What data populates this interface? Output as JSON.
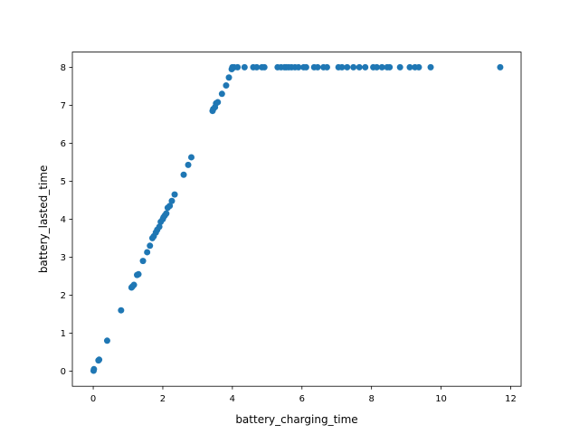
{
  "chart_data": {
    "type": "scatter",
    "title": "",
    "xlabel": "battery_charging_time",
    "ylabel": "battery_lasted_time",
    "xlim": [
      -0.6,
      12.3
    ],
    "ylim": [
      -0.4,
      8.4
    ],
    "xticks": [
      0,
      2,
      4,
      6,
      8,
      10,
      12
    ],
    "yticks": [
      0,
      1,
      2,
      3,
      4,
      5,
      6,
      7,
      8
    ],
    "grid": false,
    "marker_color": "#1f77b4",
    "series": [
      {
        "x": [
          0.01,
          0.02,
          0.15,
          0.17,
          0.4,
          0.8,
          1.1,
          1.13,
          1.17,
          1.26,
          1.3,
          1.43,
          1.55,
          1.63,
          1.7,
          1.74,
          1.8,
          1.84,
          1.9,
          1.94,
          2.0,
          2.02,
          2.06,
          2.1,
          2.14,
          2.2,
          2.26,
          2.34,
          2.6,
          2.73,
          2.82,
          3.43,
          3.45,
          3.5,
          3.53,
          3.58,
          3.7,
          3.82,
          3.9,
          3.98,
          4.0,
          4.05,
          4.15,
          4.35,
          4.6,
          4.7,
          4.85,
          4.92,
          5.3,
          5.4,
          5.5,
          5.55,
          5.62,
          5.7,
          5.8,
          5.9,
          6.05,
          6.12,
          6.35,
          6.45,
          6.62,
          6.72,
          7.05,
          7.15,
          7.3,
          7.48,
          7.65,
          7.82,
          8.05,
          8.15,
          8.3,
          8.45,
          8.52,
          8.82,
          9.1,
          9.25,
          9.36,
          9.7,
          11.7
        ],
        "y": [
          0.01,
          0.05,
          0.28,
          0.3,
          0.8,
          1.6,
          2.2,
          2.23,
          2.27,
          2.53,
          2.55,
          2.9,
          3.13,
          3.3,
          3.5,
          3.55,
          3.65,
          3.72,
          3.8,
          3.93,
          4.0,
          4.05,
          4.1,
          4.15,
          4.3,
          4.35,
          4.48,
          4.65,
          5.17,
          5.43,
          5.63,
          6.85,
          6.9,
          6.95,
          7.05,
          7.08,
          7.3,
          7.52,
          7.73,
          7.95,
          8.0,
          8.0,
          8.0,
          8.0,
          8.0,
          8.0,
          8.0,
          8.0,
          8.0,
          8.0,
          8.0,
          8.0,
          8.0,
          8.0,
          8.0,
          8.0,
          8.0,
          8.0,
          8.0,
          8.0,
          8.0,
          8.0,
          8.0,
          8.0,
          8.0,
          8.0,
          8.0,
          8.0,
          8.0,
          8.0,
          8.0,
          8.0,
          8.0,
          8.0,
          8.0,
          8.0,
          8.0,
          8.0,
          8.0
        ]
      }
    ]
  }
}
